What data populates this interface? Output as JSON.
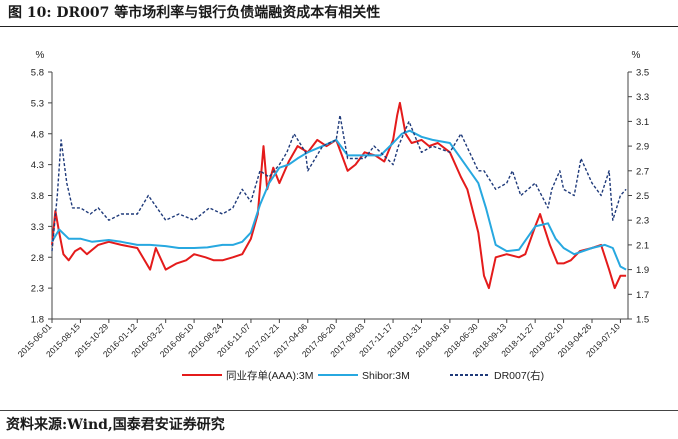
{
  "figure": {
    "title": "图 10:  DR007 等市场利率与银行负债端融资成本有相关性",
    "source": "资料来源:Wind,国泰君安证券研究"
  },
  "chart_data": {
    "type": "line",
    "left_axis": {
      "unit": "%",
      "ylim": [
        1.8,
        5.8
      ],
      "ticks": [
        "1.8",
        "2.3",
        "2.8",
        "3.3",
        "3.8",
        "4.3",
        "4.8",
        "5.3",
        "5.8"
      ]
    },
    "right_axis": {
      "unit": "%",
      "ylim": [
        1.5,
        3.5
      ],
      "ticks": [
        "1.5",
        "1.7",
        "1.9",
        "2.1",
        "2.3",
        "2.5",
        "2.7",
        "2.9",
        "3.1",
        "3.3",
        "3.5"
      ]
    },
    "x_ticks": [
      "2015-06-01",
      "2015-08-15",
      "2015-10-29",
      "2016-01-12",
      "2016-03-27",
      "2016-06-10",
      "2016-08-24",
      "2016-11-07",
      "2017-01-21",
      "2017-04-06",
      "2017-06-20",
      "2017-09-03",
      "2017-11-17",
      "2018-01-31",
      "2018-04-16",
      "2018-06-30",
      "2018-09-13",
      "2018-11-27",
      "2019-02-10",
      "2019-04-26",
      "2019-07-10"
    ],
    "grid": false,
    "legend_position": "bottom",
    "series": [
      {
        "name": "同业存单(AAA):3M",
        "axis": "left",
        "color": "#e41b1b",
        "style": "solid",
        "x": [
          "2015-06-01",
          "2015-06-10",
          "2015-06-20",
          "2015-07-01",
          "2015-07-15",
          "2015-08-01",
          "2015-08-15",
          "2015-09-01",
          "2015-10-01",
          "2015-10-29",
          "2015-12-01",
          "2016-01-12",
          "2016-02-15",
          "2016-03-01",
          "2016-03-27",
          "2016-04-25",
          "2016-05-20",
          "2016-06-10",
          "2016-07-10",
          "2016-08-01",
          "2016-08-24",
          "2016-09-20",
          "2016-10-15",
          "2016-11-07",
          "2016-11-25",
          "2016-12-10",
          "2016-12-20",
          "2017-01-05",
          "2017-01-21",
          "2017-02-15",
          "2017-03-10",
          "2017-04-06",
          "2017-05-01",
          "2017-05-25",
          "2017-06-20",
          "2017-07-20",
          "2017-08-10",
          "2017-09-03",
          "2017-10-01",
          "2017-10-25",
          "2017-11-17",
          "2017-11-28",
          "2017-12-05",
          "2017-12-20",
          "2018-01-05",
          "2018-01-31",
          "2018-02-20",
          "2018-03-15",
          "2018-04-16",
          "2018-05-15",
          "2018-06-01",
          "2018-06-30",
          "2018-07-15",
          "2018-07-28",
          "2018-08-15",
          "2018-09-13",
          "2018-10-15",
          "2018-11-01",
          "2018-11-27",
          "2018-12-10",
          "2018-12-20",
          "2019-01-05",
          "2019-01-25",
          "2019-02-10",
          "2019-03-01",
          "2019-03-25",
          "2019-04-26",
          "2019-05-20",
          "2019-06-10",
          "2019-06-25",
          "2019-07-10",
          "2019-07-25"
        ],
        "values": [
          3.0,
          3.55,
          3.2,
          2.85,
          2.75,
          2.9,
          2.95,
          2.85,
          3.0,
          3.05,
          3.0,
          2.95,
          2.6,
          2.95,
          2.6,
          2.7,
          2.75,
          2.85,
          2.8,
          2.75,
          2.75,
          2.8,
          2.85,
          3.1,
          3.5,
          4.6,
          3.9,
          4.25,
          4.0,
          4.35,
          4.6,
          4.5,
          4.7,
          4.6,
          4.7,
          4.2,
          4.3,
          4.5,
          4.45,
          4.35,
          4.7,
          5.1,
          5.3,
          4.8,
          4.65,
          4.7,
          4.6,
          4.65,
          4.5,
          4.1,
          3.9,
          3.2,
          2.5,
          2.3,
          2.8,
          2.85,
          2.8,
          2.85,
          3.3,
          3.5,
          3.3,
          3.0,
          2.7,
          2.7,
          2.75,
          2.9,
          2.95,
          3.0,
          2.6,
          2.3,
          2.5,
          2.5
        ]
      },
      {
        "name": "Shibor:3M",
        "axis": "left",
        "color": "#27a8e0",
        "style": "solid",
        "x": [
          "2015-06-01",
          "2015-06-20",
          "2015-07-15",
          "2015-08-15",
          "2015-09-15",
          "2015-10-29",
          "2015-12-01",
          "2016-01-12",
          "2016-02-15",
          "2016-03-27",
          "2016-05-01",
          "2016-06-10",
          "2016-07-15",
          "2016-08-24",
          "2016-09-20",
          "2016-10-15",
          "2016-11-07",
          "2016-12-01",
          "2016-12-25",
          "2017-01-21",
          "2017-02-15",
          "2017-03-10",
          "2017-04-06",
          "2017-05-15",
          "2017-06-20",
          "2017-07-20",
          "2017-09-03",
          "2017-10-15",
          "2017-11-17",
          "2017-12-10",
          "2017-12-31",
          "2018-01-31",
          "2018-03-01",
          "2018-04-16",
          "2018-05-15",
          "2018-06-30",
          "2018-07-20",
          "2018-08-15",
          "2018-09-13",
          "2018-10-15",
          "2018-11-27",
          "2018-12-31",
          "2019-01-20",
          "2019-02-10",
          "2019-03-10",
          "2019-04-26",
          "2019-05-30",
          "2019-06-20",
          "2019-07-10",
          "2019-07-25"
        ],
        "values": [
          3.05,
          3.25,
          3.1,
          3.1,
          3.05,
          3.08,
          3.05,
          3.0,
          3.0,
          2.98,
          2.95,
          2.95,
          2.96,
          3.0,
          3.0,
          3.05,
          3.2,
          3.65,
          4.0,
          4.25,
          4.3,
          4.4,
          4.5,
          4.6,
          4.7,
          4.45,
          4.45,
          4.45,
          4.65,
          4.8,
          4.85,
          4.75,
          4.7,
          4.65,
          4.4,
          4.0,
          3.6,
          3.0,
          2.9,
          2.92,
          3.3,
          3.35,
          3.1,
          2.95,
          2.85,
          2.95,
          3.0,
          2.95,
          2.65,
          2.6
        ]
      },
      {
        "name": "DR007(右)",
        "axis": "right",
        "color": "#1f3a7a",
        "style": "dashed",
        "x": [
          "2015-06-01",
          "2015-06-15",
          "2015-06-25",
          "2015-07-10",
          "2015-07-25",
          "2015-08-15",
          "2015-09-10",
          "2015-10-01",
          "2015-10-29",
          "2015-12-01",
          "2016-01-12",
          "2016-02-10",
          "2016-03-27",
          "2016-05-01",
          "2016-06-10",
          "2016-07-20",
          "2016-08-24",
          "2016-09-20",
          "2016-10-15",
          "2016-11-07",
          "2016-12-01",
          "2016-12-25",
          "2017-01-21",
          "2017-02-10",
          "2017-03-01",
          "2017-03-31",
          "2017-04-06",
          "2017-05-15",
          "2017-06-20",
          "2017-06-30",
          "2017-07-20",
          "2017-09-03",
          "2017-09-28",
          "2017-10-15",
          "2017-11-17",
          "2017-12-01",
          "2017-12-29",
          "2018-01-31",
          "2018-03-01",
          "2018-04-16",
          "2018-05-15",
          "2018-06-30",
          "2018-07-15",
          "2018-08-15",
          "2018-09-13",
          "2018-09-28",
          "2018-10-20",
          "2018-11-27",
          "2018-12-31",
          "2019-01-10",
          "2019-01-31",
          "2019-02-10",
          "2019-03-10",
          "2019-03-28",
          "2019-04-26",
          "2019-05-20",
          "2019-06-10",
          "2019-06-20",
          "2019-07-10",
          "2019-07-25"
        ],
        "values": [
          2.05,
          2.5,
          2.95,
          2.6,
          2.4,
          2.4,
          2.35,
          2.4,
          2.3,
          2.35,
          2.35,
          2.5,
          2.3,
          2.35,
          2.3,
          2.4,
          2.35,
          2.4,
          2.55,
          2.45,
          2.7,
          2.65,
          2.75,
          2.85,
          3.0,
          2.85,
          2.7,
          2.9,
          2.95,
          3.15,
          2.8,
          2.8,
          2.9,
          2.85,
          2.75,
          2.9,
          3.1,
          2.85,
          2.9,
          2.85,
          3.0,
          2.7,
          2.7,
          2.55,
          2.6,
          2.7,
          2.5,
          2.6,
          2.4,
          2.55,
          2.7,
          2.55,
          2.5,
          2.8,
          2.6,
          2.5,
          2.7,
          2.3,
          2.5,
          2.55
        ]
      }
    ]
  }
}
